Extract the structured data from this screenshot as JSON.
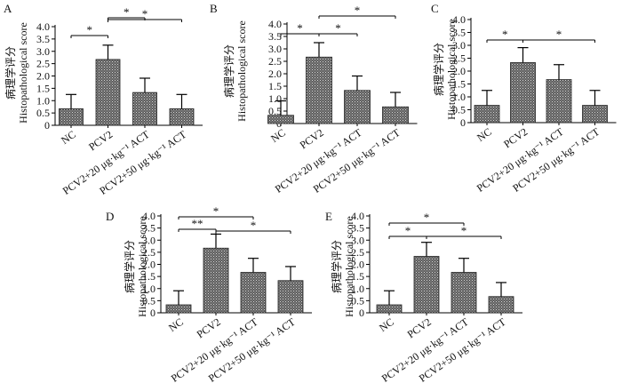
{
  "figure": {
    "ylabel_zh": "病理学评分",
    "ylabel_en": "Histopathological score"
  },
  "chart_data": [
    {
      "type": "bar",
      "label": "A",
      "ylim": [
        0,
        4.0
      ],
      "ylabel": "Histopathological score",
      "yticks": [
        "0",
        "0.5",
        "1.0",
        "1.5",
        "2.0",
        "2.5",
        "3.0",
        "3.5",
        "4.0"
      ],
      "categories": [
        "NC",
        "PCV2",
        "PCV2+20 μg·kg⁻¹ ACT",
        "PCV2+50 μg·kg⁻¹ ACT"
      ],
      "values": [
        0.67,
        2.67,
        1.33,
        0.67
      ],
      "errors": [
        0.58,
        0.58,
        0.58,
        0.58
      ],
      "annotations": [
        {
          "from": 0,
          "to": 1,
          "text": "*"
        },
        {
          "from": 1,
          "to": 2,
          "text": "*"
        },
        {
          "from": 1,
          "to": 3,
          "text": "*"
        }
      ]
    },
    {
      "type": "bar",
      "label": "B",
      "ylim": [
        0,
        4.0
      ],
      "ylabel": "Histopathological score",
      "yticks": [
        "0",
        "0.5",
        "1.0",
        "1.5",
        "2.0",
        "2.5",
        "3.0",
        "3.5",
        "4.0"
      ],
      "categories": [
        "NC",
        "PCV2",
        "PCV2+20 μg·kg⁻¹ ACT",
        "PCV2+50 μg·kg⁻¹ ACT"
      ],
      "values": [
        0.33,
        2.67,
        1.33,
        0.67
      ],
      "errors": [
        0.58,
        0.58,
        0.58,
        0.58
      ],
      "annotations": [
        {
          "from": 0,
          "to": 1,
          "text": "*"
        },
        {
          "from": 1,
          "to": 2,
          "text": "*"
        },
        {
          "from": 1,
          "to": 3,
          "text": "*"
        }
      ]
    },
    {
      "type": "bar",
      "label": "C",
      "ylim": [
        0,
        4.0
      ],
      "ylabel": "Histopathological score",
      "yticks": [
        "0",
        "0.5",
        "1.0",
        "1.5",
        "2.0",
        "2.5",
        "3.0",
        "3.5",
        "4.0"
      ],
      "categories": [
        "NC",
        "PCV2",
        "PCV2+20 μg·kg⁻¹ ACT",
        "PCV2+50 μg·kg⁻¹ ACT"
      ],
      "values": [
        0.67,
        2.33,
        1.67,
        0.67
      ],
      "errors": [
        0.58,
        0.58,
        0.58,
        0.58
      ],
      "annotations": [
        {
          "from": 0,
          "to": 1,
          "text": "*"
        },
        {
          "from": 1,
          "to": 3,
          "text": "*"
        }
      ]
    },
    {
      "type": "bar",
      "label": "D",
      "ylim": [
        0,
        4.0
      ],
      "ylabel": "Histopathological score",
      "yticks": [
        "0",
        "0.5",
        "1.0",
        "1.5",
        "2.0",
        "2.5",
        "3.0",
        "3.5",
        "4.0"
      ],
      "categories": [
        "NC",
        "PCV2",
        "PCV2+20 μg·kg⁻¹ ACT",
        "PCV2+50 μg·kg⁻¹ ACT"
      ],
      "values": [
        0.33,
        2.67,
        1.67,
        1.33
      ],
      "errors": [
        0.58,
        0.58,
        0.58,
        0.58
      ],
      "annotations": [
        {
          "from": 0,
          "to": 2,
          "text": "*"
        },
        {
          "from": 0,
          "to": 1,
          "text": "**"
        },
        {
          "from": 1,
          "to": 3,
          "text": "*"
        }
      ]
    },
    {
      "type": "bar",
      "label": "E",
      "ylim": [
        0,
        4.0
      ],
      "ylabel": "Histopathological score",
      "yticks": [
        "0",
        "0.5",
        "1.0",
        "1.5",
        "2.0",
        "2.5",
        "3.0",
        "3.5",
        "4.0"
      ],
      "categories": [
        "NC",
        "PCV2",
        "PCV2+20 μg·kg⁻¹ ACT",
        "PCV2+50 μg·kg⁻¹ ACT"
      ],
      "values": [
        0.33,
        2.33,
        1.67,
        0.67
      ],
      "errors": [
        0.58,
        0.58,
        0.58,
        0.58
      ],
      "annotations": [
        {
          "from": 0,
          "to": 2,
          "text": "*"
        },
        {
          "from": 0,
          "to": 1,
          "text": "*"
        },
        {
          "from": 1,
          "to": 3,
          "text": "*"
        }
      ]
    }
  ]
}
